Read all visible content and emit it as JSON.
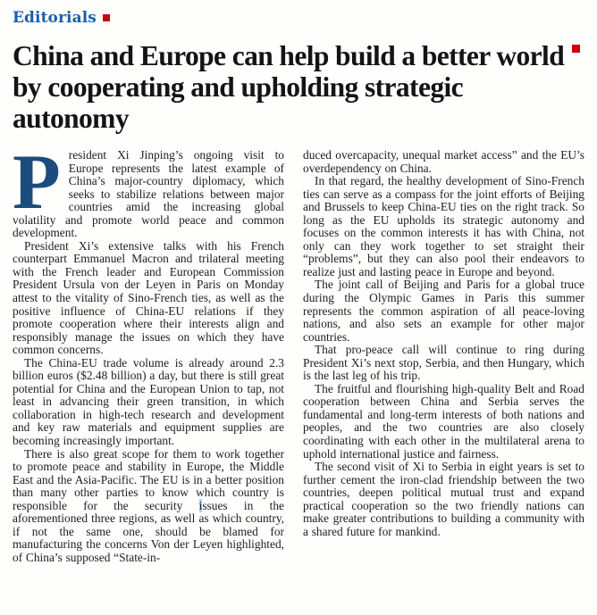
{
  "header": {
    "section_label": "Editorials",
    "red_square_icon": "red-square"
  },
  "headline": {
    "line1": "China and Europe can help build a better world",
    "line2": "by cooperating and upholding strategic autonomy",
    "red_square_icon": "red-square"
  },
  "colors": {
    "section_blue": "#1a5fa8",
    "red_square": "#c9040f",
    "dropcap_navy": "#1c4c7e",
    "body_text": "#202024",
    "cursor_highlight": "#a9d4f5"
  },
  "article": {
    "dropcap_letter": "P",
    "left_paragraphs": [
      {
        "dropcap": true,
        "no_indent": true,
        "text": "resident Xi Jinping’s ongoing visit to Europe represents the latest example of China’s major-country diplomacy, which seeks to stabilize relations between major countries amid the increasing global volatility and promote world peace and common development."
      },
      {
        "text": "President Xi’s extensive talks with his French counterpart Emmanuel Macron and trilateral meeting with the French leader and European Commission President Ursula von der Leyen in Paris on Monday attest to the vitality of Sino-French ties, as well as the positive influence of China-EU relations if they promote cooperation where their interests align and responsibly manage the issues on which they have common concerns."
      },
      {
        "text": "The China-EU trade volume is already around 2.3 billion euros ($2.48 billion) a day, but there is still great potential for China and the European Union to tap, not least in advancing their green transition, in which collaboration in high-tech research and development and key raw materials and equipment supplies are becoming increasingly important."
      },
      {
        "highlight_word": "issues",
        "text": "There is also great scope for them to work together to promote peace and stability in Europe, the Middle East and the Asia-Pacific. The EU is in a better position than many other parties to know which country is responsible for the security issues in the aforementioned three regions, as well as which country, if not the same one, should be blamed for manufacturing the concerns Von der Leyen highlighted, of China’s supposed “State-in-"
      }
    ],
    "right_paragraphs": [
      {
        "no_indent": true,
        "text": "duced overcapacity, unequal market access” and the EU’s overdependency on China."
      },
      {
        "text": "In that regard, the healthy development of Sino-French ties can serve as a compass for the joint efforts of Beijing and Brussels to keep China-EU ties on the right track. So long as the EU upholds its strategic autonomy and focuses on the common interests it has with China, not only can they work together to set straight their “problems”, but they can also pool their endeavors to realize just and lasting peace in Europe and beyond."
      },
      {
        "text": "The joint call of Beijing and Paris for a global truce during the Olympic Games in Paris this summer represents the common aspiration of all peace-loving nations, and also sets an example for other major countries."
      },
      {
        "text": "That pro-peace call will continue to ring during President Xi’s next stop, Serbia, and then Hungary, which is the last leg of his trip."
      },
      {
        "text": "The fruitful and flourishing high-quality Belt and Road cooperation between China and Serbia serves the fundamental and long-term interests of both nations and peoples, and the two countries are also closely coordinating with each other in the multilateral arena to uphold international justice and fairness."
      },
      {
        "text": "The second visit of Xi to Serbia in eight years is set to further cement the iron-clad friendship between the two countries, deepen political mutual trust and expand practical cooperation so the two friendly nations can make greater contributions to building a community with a shared future for mankind."
      }
    ]
  }
}
